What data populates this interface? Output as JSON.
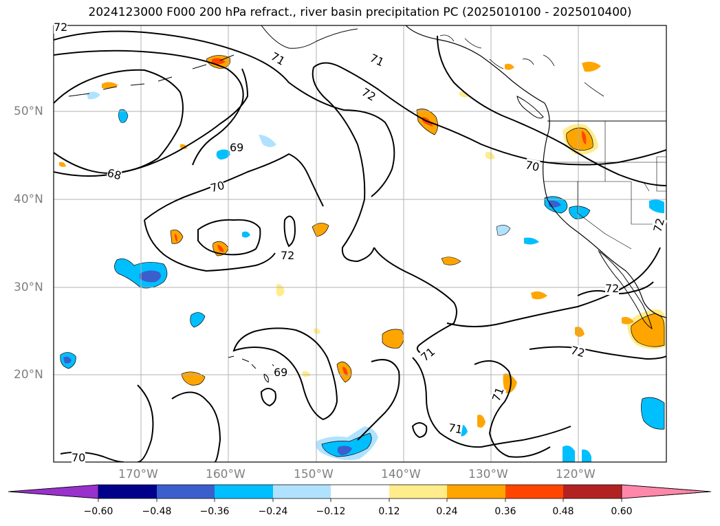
{
  "title": "2024123000 F000 200 hPa refract., river basin precipitation PC (2025010100 - 2025010400)",
  "map": {
    "projection": "plate-carree",
    "lon_range": [
      -180,
      -110
    ],
    "lat_range": [
      10,
      60
    ],
    "lat_labels": [
      "50°N",
      "40°N",
      "30°N",
      "20°N"
    ],
    "lon_labels": [
      "170°W",
      "160°W",
      "150°W",
      "140°W",
      "130°W",
      "120°W"
    ],
    "gridlines": true,
    "contour_labels": [
      "72",
      "71",
      "71",
      "72",
      "69",
      "68",
      "70",
      "70",
      "72",
      "72",
      "69",
      "71",
      "72",
      "71",
      "70",
      "71",
      "72"
    ]
  },
  "colorbar": {
    "ticks": [
      "−0.60",
      "−0.48",
      "−0.36",
      "−0.24",
      "−0.12",
      "0.12",
      "0.24",
      "0.36",
      "0.48",
      "0.60"
    ],
    "colors": [
      "#9932cc",
      "#00008b",
      "#3a5fcd",
      "#00bfff",
      "#b0e2ff",
      "#ffffff",
      "#ffec8b",
      "#ffa500",
      "#ff4500",
      "#b22222",
      "#ff88aa"
    ],
    "extend": "both"
  }
}
